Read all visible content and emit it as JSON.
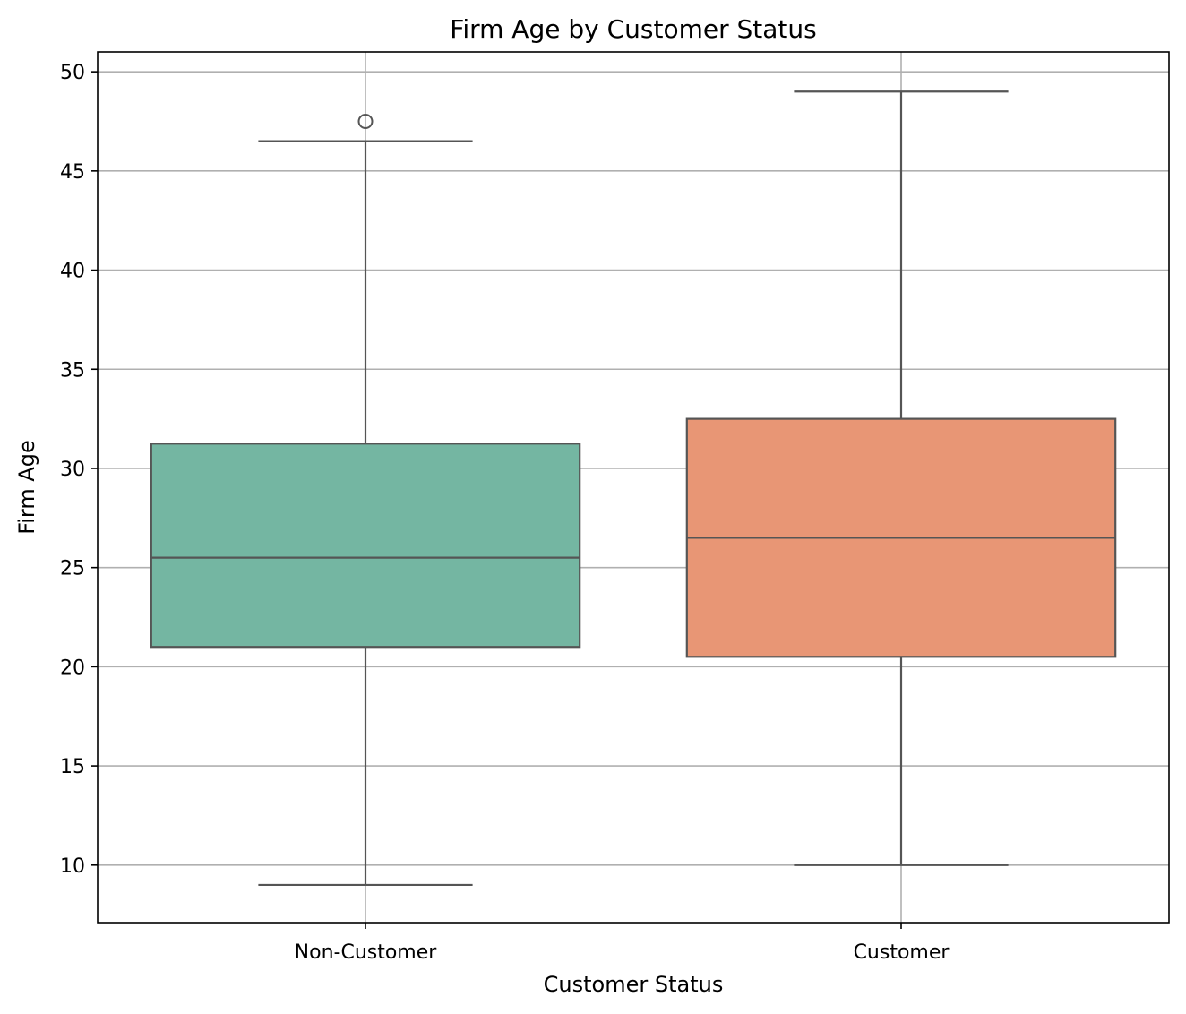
{
  "chart_data": {
    "type": "box",
    "title": "Firm Age by Customer Status",
    "xlabel": "Customer Status",
    "ylabel": "Firm Age",
    "ylim": [
      7.1,
      51.0
    ],
    "yticks": [
      10,
      15,
      20,
      25,
      30,
      35,
      40,
      45,
      50
    ],
    "grid": true,
    "categories": [
      "Non-Customer",
      "Customer"
    ],
    "boxes": [
      {
        "name": "Non-Customer",
        "whisker_low": 9.0,
        "q1": 21.0,
        "median": 25.5,
        "q3": 31.25,
        "whisker_high": 46.5,
        "outliers": [
          47.5
        ],
        "color": "#74b6a2"
      },
      {
        "name": "Customer",
        "whisker_low": 10.0,
        "q1": 20.5,
        "median": 26.5,
        "q3": 32.5,
        "whisker_high": 49.0,
        "outliers": [],
        "color": "#e89675"
      }
    ],
    "colors": {
      "box_edge": "#555555",
      "grid": "#b0b0b0",
      "axes": "#000000"
    }
  }
}
